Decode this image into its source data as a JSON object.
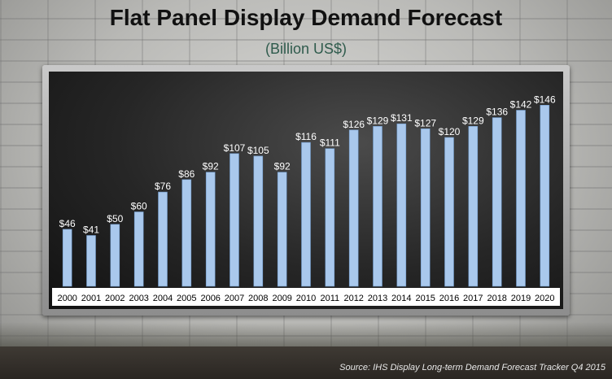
{
  "title": "Flat Panel Display Demand Forecast",
  "subtitle": "(Billion  US$)",
  "source": "Source:  IHS Display Long-term Demand Forecast Tracker Q4 2015",
  "colors": {
    "bar": "#a9c8ec",
    "bar_edge": "#6f98c8",
    "label": "#ffffff",
    "axis_label": "#000000"
  },
  "chart_data": {
    "type": "bar",
    "title": "Flat Panel Display Demand Forecast",
    "subtitle": "(Billion  US$)",
    "categories": [
      "2000",
      "2001",
      "2002",
      "2003",
      "2004",
      "2005",
      "2006",
      "2007",
      "2008",
      "2009",
      "2010",
      "2011",
      "2012",
      "2013",
      "2014",
      "2015",
      "2016",
      "2017",
      "2018",
      "2019",
      "2020"
    ],
    "values": [
      46,
      41,
      50,
      60,
      76,
      86,
      92,
      107,
      105,
      92,
      116,
      111,
      126,
      129,
      131,
      127,
      120,
      129,
      136,
      142,
      146
    ],
    "data_labels": [
      "$46",
      "$41",
      "$50",
      "$60",
      "$76",
      "$86",
      "$92",
      "$107",
      "$105",
      "$92",
      "$116",
      "$111",
      "$126",
      "$129",
      "$131",
      "$127",
      "$120",
      "$129",
      "$136",
      "$142",
      "$146"
    ],
    "xlabel": "",
    "ylabel": "",
    "ylim": [
      0,
      160
    ],
    "grid": false,
    "legend": "none"
  }
}
